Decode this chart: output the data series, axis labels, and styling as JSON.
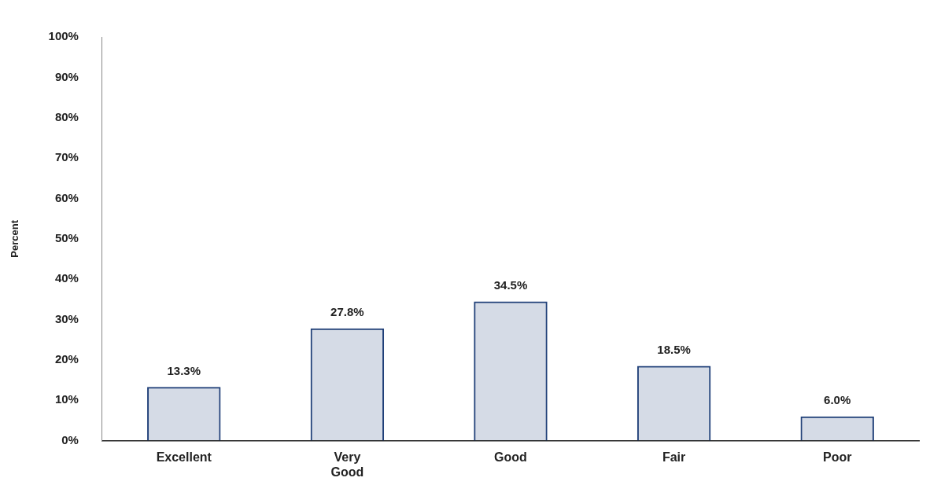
{
  "chart_data": {
    "type": "bar",
    "ylabel": "Percent",
    "categories": [
      "Excellent",
      "Very Good",
      "Good",
      "Fair",
      "Poor"
    ],
    "values": [
      13.3,
      27.8,
      34.5,
      18.5,
      6.0
    ],
    "value_labels": [
      "13.3%",
      "27.8%",
      "34.5%",
      "18.5%",
      "6.0%"
    ],
    "color": "#1f3f78",
    "ylim": [
      0,
      100
    ],
    "yticks": [
      {
        "value": 0,
        "label": "0%"
      },
      {
        "value": 10,
        "label": "10%"
      },
      {
        "value": 20,
        "label": "20%"
      },
      {
        "value": 30,
        "label": "30%"
      },
      {
        "value": 40,
        "label": "40%"
      },
      {
        "value": 50,
        "label": "50%"
      },
      {
        "value": 60,
        "label": "60%"
      },
      {
        "value": 70,
        "label": "70%"
      },
      {
        "value": 80,
        "label": "80%"
      },
      {
        "value": 90,
        "label": "90%"
      },
      {
        "value": 100,
        "label": "100%"
      }
    ],
    "grid": false,
    "legend": false
  }
}
